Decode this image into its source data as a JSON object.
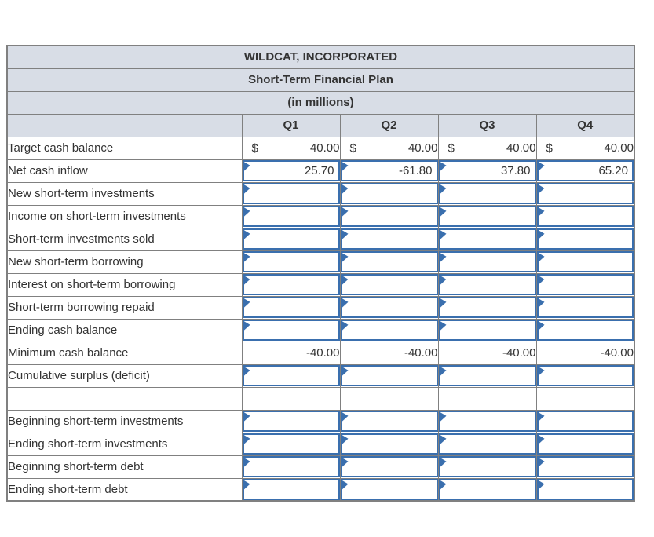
{
  "colors": {
    "accent_blue": "#3a6fae",
    "header_bg": "#d8dde6",
    "grid_gray": "#808080",
    "rule_black": "#000000",
    "text": "#333333"
  },
  "table": {
    "titles": [
      "WILDCAT, INCORPORATED",
      "Short-Term Financial Plan",
      "(in millions)"
    ],
    "columns": [
      "Q1",
      "Q2",
      "Q3",
      "Q4"
    ],
    "rows": [
      {
        "label": "Target cash balance",
        "type": "static",
        "currency": "$",
        "values": [
          "40.00",
          "40.00",
          "40.00",
          "40.00"
        ]
      },
      {
        "label": "Net cash inflow",
        "type": "input",
        "values": [
          "25.70",
          "-61.80",
          "37.80",
          "65.20"
        ]
      },
      {
        "label": "New short-term investments",
        "type": "input",
        "values": [
          "",
          "",
          "",
          ""
        ]
      },
      {
        "label": "Income on short-term investments",
        "type": "input",
        "values": [
          "",
          "",
          "",
          ""
        ]
      },
      {
        "label": "Short-term investments sold",
        "type": "input",
        "values": [
          "",
          "",
          "",
          ""
        ]
      },
      {
        "label": "New short-term borrowing",
        "type": "input",
        "values": [
          "",
          "",
          "",
          ""
        ]
      },
      {
        "label": "Interest on short-term borrowing",
        "type": "input",
        "values": [
          "",
          "",
          "",
          ""
        ]
      },
      {
        "label": "Short-term borrowing repaid",
        "type": "input",
        "values": [
          "",
          "",
          "",
          ""
        ]
      },
      {
        "label": "Ending cash balance",
        "type": "input",
        "rule_top": true,
        "values": [
          "",
          "",
          "",
          ""
        ]
      },
      {
        "label": "Minimum cash balance",
        "type": "static",
        "values": [
          "-40.00",
          "-40.00",
          "-40.00",
          "-40.00"
        ]
      },
      {
        "label": "Cumulative surplus (deficit)",
        "type": "input",
        "rule_top": true,
        "double_bottom": true,
        "values": [
          "",
          "",
          "",
          ""
        ]
      },
      {
        "label": "",
        "type": "blank"
      },
      {
        "label": "Beginning short-term investments",
        "type": "input",
        "values": [
          "",
          "",
          "",
          ""
        ]
      },
      {
        "label": "Ending short-term investments",
        "type": "input",
        "values": [
          "",
          "",
          "",
          ""
        ]
      },
      {
        "label": "Beginning short-term debt",
        "type": "input",
        "values": [
          "",
          "",
          "",
          ""
        ]
      },
      {
        "label": "Ending short-term debt",
        "type": "input",
        "values": [
          "",
          "",
          "",
          ""
        ]
      }
    ]
  }
}
